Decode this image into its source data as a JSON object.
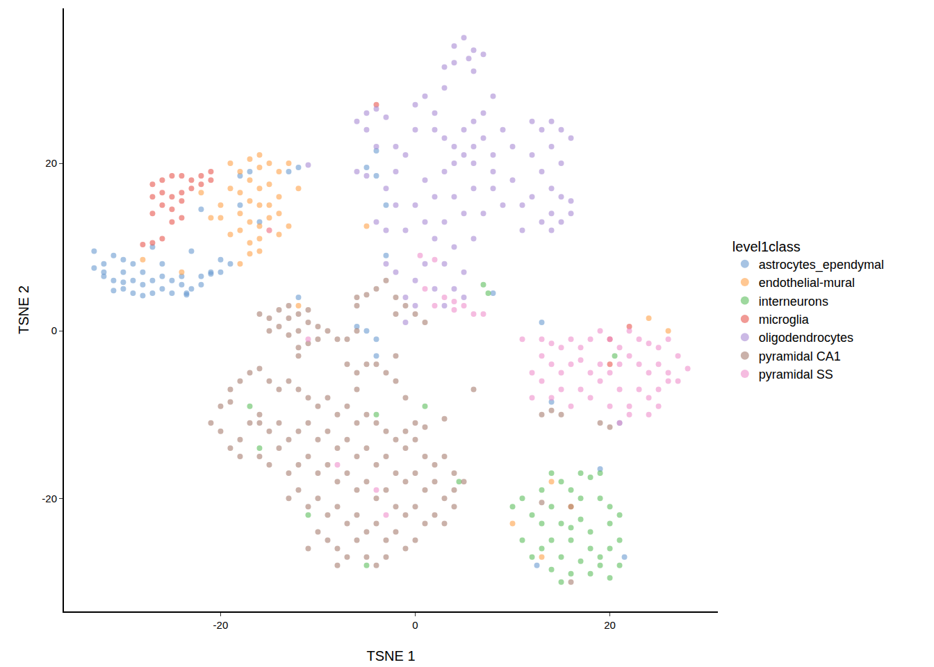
{
  "chart_data": {
    "type": "scatter",
    "x_label": "TSNE 1",
    "y_label": "TSNE 2",
    "legend_title": "level1class",
    "legend": "right",
    "grid": false,
    "marker": "circle",
    "xlim": [
      -36.1,
      31.1
    ],
    "ylim": [
      -33.5,
      38.5
    ],
    "xticks": [
      -20,
      0,
      20
    ],
    "yticks": [
      -20,
      0,
      20
    ],
    "series": [
      {
        "name": "astrocytes_ependymal",
        "color": "#6A9BD1",
        "x": [
          -33,
          -32,
          -33,
          -31,
          -30,
          -32,
          -31,
          -30,
          -29,
          -30,
          -29,
          -28,
          -28,
          -27,
          -27,
          -26,
          -26,
          -25,
          -25,
          -24,
          -24,
          -23,
          -22,
          -21,
          -22,
          -23.5,
          -31,
          -32,
          -29,
          -26,
          -27,
          -21,
          -20,
          -23.5,
          -28,
          -30,
          -20,
          -19,
          -22,
          -23,
          -17,
          -18,
          -16,
          -18,
          -13,
          -12,
          -5,
          -4,
          -4,
          -3,
          -3,
          -4,
          -5,
          -6,
          -4,
          -12,
          13,
          14,
          21,
          19,
          21.5,
          12.5,
          8
        ],
        "y": [
          9.5,
          8,
          7.5,
          9,
          8.5,
          6.5,
          6,
          7,
          6,
          5,
          4.5,
          5.5,
          7,
          6,
          4.5,
          5,
          6.5,
          4.5,
          6,
          5.5,
          6.5,
          5,
          6.5,
          7,
          5.5,
          4.5,
          4.8,
          7,
          8,
          8,
          10,
          6.8,
          7,
          4.3,
          4.2,
          5.8,
          8.5,
          8,
          14.5,
          9.5,
          19,
          18.5,
          13,
          15,
          19,
          19.5,
          19.5,
          18.5,
          21.5,
          15,
          9,
          -1,
          0,
          0.5,
          -3,
          4,
          1,
          -8.5,
          -11,
          -16.5,
          -27,
          -28,
          4.5
        ]
      },
      {
        "name": "endothelial-mural",
        "color": "#FFA24A",
        "x": [
          -19,
          -18,
          -17,
          -16,
          -15,
          -14,
          -17,
          -16,
          -18,
          -15,
          -17,
          -16,
          -18,
          -17,
          -16,
          -15,
          -14,
          -18,
          -19,
          -16,
          -15,
          -17,
          -16,
          -20,
          -21,
          -22,
          -13,
          -12,
          -14,
          -15,
          -16,
          -19,
          -20,
          -18,
          -17,
          -14,
          -13,
          -24,
          -28,
          -12,
          -5,
          24,
          26,
          16,
          14,
          13,
          10
        ],
        "y": [
          20,
          19,
          20.5,
          19.5,
          20,
          19,
          18,
          17,
          16.5,
          17.5,
          15.5,
          15,
          14,
          13,
          12.5,
          13.5,
          14,
          12,
          11.5,
          11,
          12,
          10.5,
          9.5,
          13.5,
          13.5,
          16.5,
          20,
          17,
          16,
          15,
          21,
          17,
          15,
          8,
          9.2,
          11.5,
          12.5,
          7,
          8.5,
          3,
          12.5,
          1.5,
          0,
          -21,
          -18,
          -27,
          -23
        ]
      },
      {
        "name": "interneurons",
        "color": "#5EBE5E",
        "x": [
          14,
          15,
          17,
          18,
          19,
          13,
          16,
          14,
          17,
          19,
          20,
          11,
          10,
          12,
          13,
          15,
          17,
          20,
          21,
          14,
          16,
          18,
          20,
          21,
          13,
          15,
          17,
          19,
          21,
          16,
          18,
          20,
          14,
          15,
          12,
          11,
          16,
          18,
          19,
          7.5,
          7,
          20.5,
          1,
          -4,
          -16,
          -17,
          -5,
          4.5,
          -11
        ],
        "y": [
          -17,
          -18,
          -17,
          -17.5,
          -17,
          -19,
          -19,
          -21,
          -20,
          -20,
          -21,
          -20,
          -21,
          -22,
          -23,
          -23,
          -22.5,
          -23,
          -22,
          -25,
          -25,
          -26,
          -26,
          -25,
          -26,
          -27,
          -27.5,
          -28,
          -28,
          -29,
          -29,
          -29.5,
          -28.5,
          -30,
          -27,
          -25,
          -23.5,
          -24,
          -27,
          4.5,
          5.5,
          -3,
          -9,
          -10,
          -14,
          -9,
          -28,
          -18,
          -22
        ]
      },
      {
        "name": "microglia",
        "color": "#E8574F",
        "x": [
          -27,
          -26,
          -25,
          -24,
          -23,
          -22,
          -23,
          -24,
          -25,
          -26,
          -27,
          -26,
          -25,
          -24,
          -22,
          -21,
          -27,
          -25,
          -24,
          -26,
          -27,
          -28,
          -4,
          22,
          20,
          20,
          -21
        ],
        "y": [
          17.5,
          18,
          18.5,
          18.5,
          18,
          18.5,
          17,
          16.5,
          16,
          16.5,
          16,
          15,
          14.5,
          15.5,
          17.5,
          18,
          14,
          13,
          13.5,
          11,
          10.5,
          10.3,
          27,
          0.5,
          -1,
          -4,
          19
        ]
      },
      {
        "name": "oligodendrocytes",
        "color": "#A98BD3",
        "x": [
          4,
          5,
          6,
          5.5,
          4,
          7,
          3,
          6,
          3,
          8,
          -5,
          -4,
          -3,
          -5,
          -6,
          -2,
          -4,
          -6,
          -5,
          -3,
          -2,
          -1,
          0,
          1,
          2,
          0,
          2,
          3,
          4,
          5,
          6,
          7,
          8,
          5,
          6,
          7,
          9,
          10,
          4,
          6,
          8,
          3,
          1,
          2,
          4,
          6,
          8,
          0,
          1,
          3,
          5,
          7,
          9,
          -1,
          2,
          4,
          6,
          1,
          3,
          5,
          0,
          2,
          4,
          5,
          3,
          -1,
          12,
          13,
          14,
          15,
          16,
          14,
          12,
          15,
          13,
          14,
          12,
          15,
          16,
          14,
          15,
          13,
          11,
          10,
          11,
          14,
          16,
          -3,
          -4,
          -3,
          -2,
          -1,
          0,
          -2,
          -11
        ],
        "y": [
          34,
          35,
          33.5,
          32.5,
          32,
          33,
          31.5,
          31,
          29,
          28,
          26,
          26.5,
          25.5,
          24,
          25,
          22,
          22,
          19,
          18.5,
          17,
          19,
          21,
          27,
          28,
          26,
          24,
          24,
          23,
          22,
          21,
          22,
          23,
          21,
          24,
          25,
          26,
          24,
          22,
          20,
          20,
          19,
          19,
          18,
          16,
          16,
          17,
          17,
          15,
          13,
          13,
          14,
          14,
          15,
          12,
          11,
          10,
          11,
          8,
          8,
          7,
          6,
          5,
          5,
          4,
          3,
          4,
          25,
          24,
          25,
          24,
          23,
          22,
          21,
          20,
          19,
          17,
          16,
          16,
          14,
          14,
          13,
          13,
          15,
          18,
          12,
          12,
          15.5,
          12,
          13,
          8,
          7,
          1,
          3,
          15,
          19.8
        ]
      },
      {
        "name": "pyramidal CA1",
        "color": "#A77D6F",
        "x": [
          -16,
          -15,
          -14,
          -13,
          -12,
          -11,
          -10,
          -12,
          -13,
          -14,
          -11,
          -12,
          -10,
          -9,
          -13,
          -11,
          -8,
          -15,
          -12,
          -7,
          -6,
          -4,
          -3,
          -2,
          -1,
          -6,
          -5,
          -7,
          -2,
          -6,
          0,
          1,
          -1,
          -6,
          -5,
          -4,
          -3,
          -2,
          -1,
          0,
          1,
          -2,
          -6,
          -20,
          -19,
          -18,
          -17,
          -16,
          -15,
          -14,
          -13,
          -12,
          -11,
          -10,
          -9,
          -8,
          -7,
          -6,
          -5,
          -4,
          -3,
          -2,
          -1,
          0,
          1,
          2,
          3,
          4,
          -21,
          -20,
          -19,
          -18,
          -17,
          -16,
          -15,
          -14,
          -13,
          -12,
          -11,
          -10,
          -9,
          -8,
          -7,
          -6,
          -5,
          -4,
          -3,
          -2,
          -1,
          0,
          1,
          2,
          3,
          4,
          5,
          4,
          -18,
          -16,
          -15,
          -14,
          -13,
          -12,
          -11,
          -10,
          -9,
          -8,
          -7,
          -6,
          -5,
          -4,
          -3,
          -2,
          -1,
          0,
          1,
          2,
          3,
          -13,
          -12,
          -11,
          -10,
          -9,
          -8,
          -7,
          -6,
          -5,
          -4,
          -3,
          -2,
          -1,
          0,
          -9,
          -8,
          -7,
          -6,
          -5,
          -4,
          -10,
          -11,
          -8,
          -3,
          -16,
          -19,
          3,
          6,
          16,
          15,
          14,
          13,
          19,
          20,
          16,
          13
        ],
        "y": [
          2,
          1.5,
          2.5,
          3,
          2,
          1,
          0.5,
          0,
          -0.5,
          0.5,
          -1.5,
          -2,
          -1,
          0,
          1.5,
          2.5,
          -1,
          0,
          -3,
          -1,
          0,
          -4,
          -5,
          -6,
          -8,
          -5,
          -4,
          -4,
          -3,
          -7,
          -11,
          -11.5,
          -12,
          4,
          4.3,
          5,
          6,
          4,
          3,
          2,
          1,
          2,
          3,
          -9,
          -7,
          -6,
          -5,
          -4.5,
          -6,
          -7,
          -6,
          -7,
          -8,
          -9,
          -8,
          -10,
          -9,
          -11,
          -10,
          -11,
          -12,
          -13,
          -14,
          -13,
          -15,
          -16,
          -15,
          -17,
          -11,
          -12,
          -14,
          -13,
          -11,
          -10,
          -12,
          -11,
          -13,
          -12,
          -11,
          -13,
          -12,
          -14,
          -13,
          -15,
          -14,
          -16,
          -15,
          -17,
          -18,
          -17,
          -19,
          -18,
          -20,
          -19,
          -18,
          -21,
          -15,
          -15,
          -16,
          -14,
          -17,
          -16,
          -15,
          -17,
          -16,
          -18,
          -17,
          -19,
          -18,
          -20,
          -19,
          -21,
          -22,
          -21,
          -23,
          -22,
          -23,
          -20,
          -19,
          -21,
          -20,
          -22,
          -21,
          -23,
          -22,
          -24,
          -23,
          -25,
          -24,
          -26,
          -25,
          -25,
          -26,
          -27,
          -25,
          -27,
          -28,
          -24,
          -26,
          -28,
          -27,
          -11,
          -8.5,
          -10.5,
          -7,
          -21,
          -10,
          -9.5,
          -10,
          -11,
          -11.5,
          -30,
          -20.5
        ]
      },
      {
        "name": "pyramidal SS",
        "color": "#EE8FCB",
        "x": [
          13,
          14,
          15,
          16,
          17,
          18,
          19,
          20,
          21,
          22,
          23,
          24,
          25,
          26,
          13,
          14,
          15,
          16,
          17,
          18,
          19,
          20,
          21,
          22,
          23,
          24,
          25,
          26,
          27,
          28,
          12,
          13,
          15,
          17,
          19,
          21,
          23,
          25,
          14,
          16,
          18,
          20,
          22,
          24,
          26,
          21,
          22,
          24,
          25,
          12,
          11,
          27,
          1,
          2,
          3,
          4,
          5,
          6,
          7,
          2,
          0.5,
          4,
          -11,
          -4,
          -8,
          -3,
          -15
        ],
        "y": [
          -1,
          -1.5,
          -2,
          -1,
          -2,
          -1,
          0,
          -1,
          -2,
          0,
          -1,
          -1.5,
          -2,
          -1,
          -3,
          -4,
          -5,
          -4,
          -3.5,
          -5,
          -4,
          -5,
          -4,
          -3,
          -4,
          -5,
          -4,
          -5,
          -3,
          -4.5,
          -5,
          -6,
          -7,
          -7,
          -6,
          -7,
          -7,
          -7,
          -8,
          -9,
          -8,
          -9,
          -9,
          -8,
          -6,
          -11,
          -10,
          -10,
          -9,
          -8,
          -1,
          -6,
          5,
          3,
          4,
          3.5,
          3,
          2,
          2,
          8.5,
          9,
          2.5,
          -1,
          -19,
          -16,
          -22,
          12
        ]
      }
    ]
  }
}
